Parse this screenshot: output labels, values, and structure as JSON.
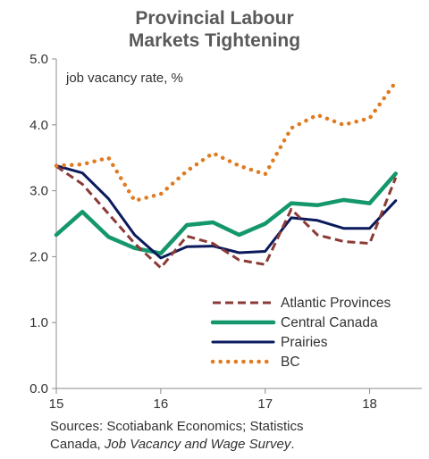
{
  "chart_data": {
    "type": "line",
    "title": [
      "Provincial Labour",
      "Markets Tightening"
    ],
    "ylabel": "job vacancy rate, %",
    "xlim": [
      15,
      18.5
    ],
    "ylim": [
      0,
      5
    ],
    "xticks": [
      15,
      16,
      17,
      18
    ],
    "xtick_labels": [
      "15",
      "16",
      "17",
      "18"
    ],
    "yticks": [
      0,
      1,
      2,
      3,
      4,
      5
    ],
    "ytick_labels": [
      "0.0",
      "1.0",
      "2.0",
      "3.0",
      "4.0",
      "5.0"
    ],
    "grid": false,
    "legend_position": "bottom-right",
    "x": [
      15.0,
      15.25,
      15.5,
      15.75,
      16.0,
      16.25,
      16.5,
      16.75,
      17.0,
      17.25,
      17.5,
      17.75,
      18.0,
      18.25
    ],
    "series": [
      {
        "name": "Atlantic Provinces",
        "color": "#8B3A35",
        "dash": "dashed",
        "values": [
          3.37,
          3.1,
          2.65,
          2.2,
          1.83,
          2.31,
          2.2,
          1.95,
          1.88,
          2.72,
          2.33,
          2.23,
          2.2,
          3.2
        ]
      },
      {
        "name": "Central Canada",
        "color": "#14976C",
        "dash": "solid",
        "values": [
          2.33,
          2.68,
          2.3,
          2.13,
          2.05,
          2.48,
          2.52,
          2.33,
          2.5,
          2.81,
          2.78,
          2.86,
          2.81,
          3.26
        ]
      },
      {
        "name": "Prairies",
        "color": "#0A1A5C",
        "dash": "solid",
        "values": [
          3.38,
          3.27,
          2.88,
          2.33,
          1.98,
          2.15,
          2.16,
          2.06,
          2.08,
          2.59,
          2.55,
          2.43,
          2.43,
          2.85
        ]
      },
      {
        "name": "BC",
        "color": "#E07B20",
        "dash": "dotted",
        "values": [
          3.38,
          3.4,
          3.5,
          2.85,
          2.95,
          3.3,
          3.57,
          3.38,
          3.25,
          3.95,
          4.15,
          4.0,
          4.1,
          4.65
        ]
      }
    ]
  },
  "sources": {
    "line1": "Sources: Scotiabank Economics; Statistics",
    "line2_prefix": "Canada, ",
    "line2_italic": "Job Vacancy and Wage Survey",
    "line2_suffix": "."
  }
}
